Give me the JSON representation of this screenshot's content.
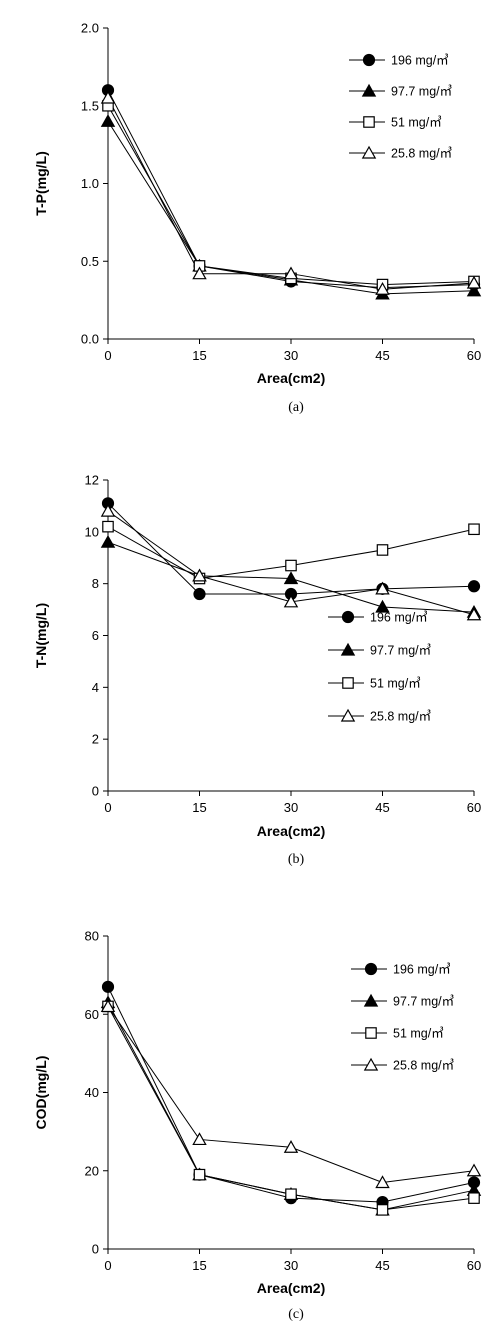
{
  "legend_labels": [
    "196 mg/㎥",
    "97.7 mg/㎥",
    "51 mg/㎥",
    "25.8 mg/㎥"
  ],
  "marker_styles": [
    "filled-circle",
    "filled-triangle",
    "open-square",
    "open-triangle"
  ],
  "chart_data": [
    {
      "type": "line",
      "caption": "(a)",
      "xlabel": "Area(cm2)",
      "ylabel": "T-P(mg/L)",
      "x": [
        0,
        15,
        30,
        45,
        60
      ],
      "xlim": [
        0,
        60
      ],
      "ylim": [
        0,
        2
      ],
      "xticks": [
        "0",
        "15",
        "30",
        "45",
        "60"
      ],
      "yticks": [
        "0.0",
        "0.5",
        "1.0",
        "1.5",
        "2.0"
      ],
      "legend_position": "top-right",
      "grid": false,
      "series": [
        {
          "name": "196 mg/㎥",
          "values": [
            1.6,
            0.47,
            0.37,
            0.33,
            0.35
          ]
        },
        {
          "name": "97.7 mg/㎥",
          "values": [
            1.4,
            0.47,
            0.38,
            0.29,
            0.31
          ]
        },
        {
          "name": "51 mg/㎥",
          "values": [
            1.5,
            0.47,
            0.39,
            0.35,
            0.37
          ]
        },
        {
          "name": "25.8 mg/㎥",
          "values": [
            1.55,
            0.42,
            0.42,
            0.32,
            0.36
          ]
        }
      ]
    },
    {
      "type": "line",
      "caption": "(b)",
      "xlabel": "Area(cm2)",
      "ylabel": "T-N(mg/L)",
      "x": [
        0,
        15,
        30,
        45,
        60
      ],
      "xlim": [
        0,
        60
      ],
      "ylim": [
        0,
        12
      ],
      "xticks": [
        "0",
        "15",
        "30",
        "45",
        "60"
      ],
      "yticks": [
        "0",
        "2",
        "4",
        "6",
        "8",
        "10",
        "12"
      ],
      "legend_position": "bottom-right",
      "grid": false,
      "series": [
        {
          "name": "196 mg/㎥",
          "values": [
            11.1,
            7.6,
            7.6,
            7.8,
            7.9
          ]
        },
        {
          "name": "97.7 mg/㎥",
          "values": [
            9.6,
            8.3,
            8.2,
            7.1,
            6.9
          ]
        },
        {
          "name": "51 mg/㎥",
          "values": [
            10.2,
            8.2,
            8.7,
            9.3,
            10.1
          ]
        },
        {
          "name": "25.8 mg/㎥",
          "values": [
            10.8,
            8.3,
            7.3,
            7.8,
            6.8
          ]
        }
      ]
    },
    {
      "type": "line",
      "caption": "(c)",
      "xlabel": "Area(cm2)",
      "ylabel": "COD(mg/L)",
      "x": [
        0,
        15,
        30,
        45,
        60
      ],
      "xlim": [
        0,
        60
      ],
      "ylim": [
        0,
        80
      ],
      "xticks": [
        "0",
        "15",
        "30",
        "45",
        "60"
      ],
      "yticks": [
        "0",
        "20",
        "40",
        "60",
        "80"
      ],
      "legend_position": "top-right",
      "grid": false,
      "series": [
        {
          "name": "196 mg/㎥",
          "values": [
            67,
            19,
            13,
            12,
            17
          ]
        },
        {
          "name": "97.7 mg/㎥",
          "values": [
            63,
            19,
            14,
            10,
            15
          ]
        },
        {
          "name": "51 mg/㎥",
          "values": [
            62,
            19,
            14,
            10,
            13
          ]
        },
        {
          "name": "25.8 mg/㎥",
          "values": [
            62,
            28,
            26,
            17,
            20
          ]
        }
      ]
    }
  ]
}
